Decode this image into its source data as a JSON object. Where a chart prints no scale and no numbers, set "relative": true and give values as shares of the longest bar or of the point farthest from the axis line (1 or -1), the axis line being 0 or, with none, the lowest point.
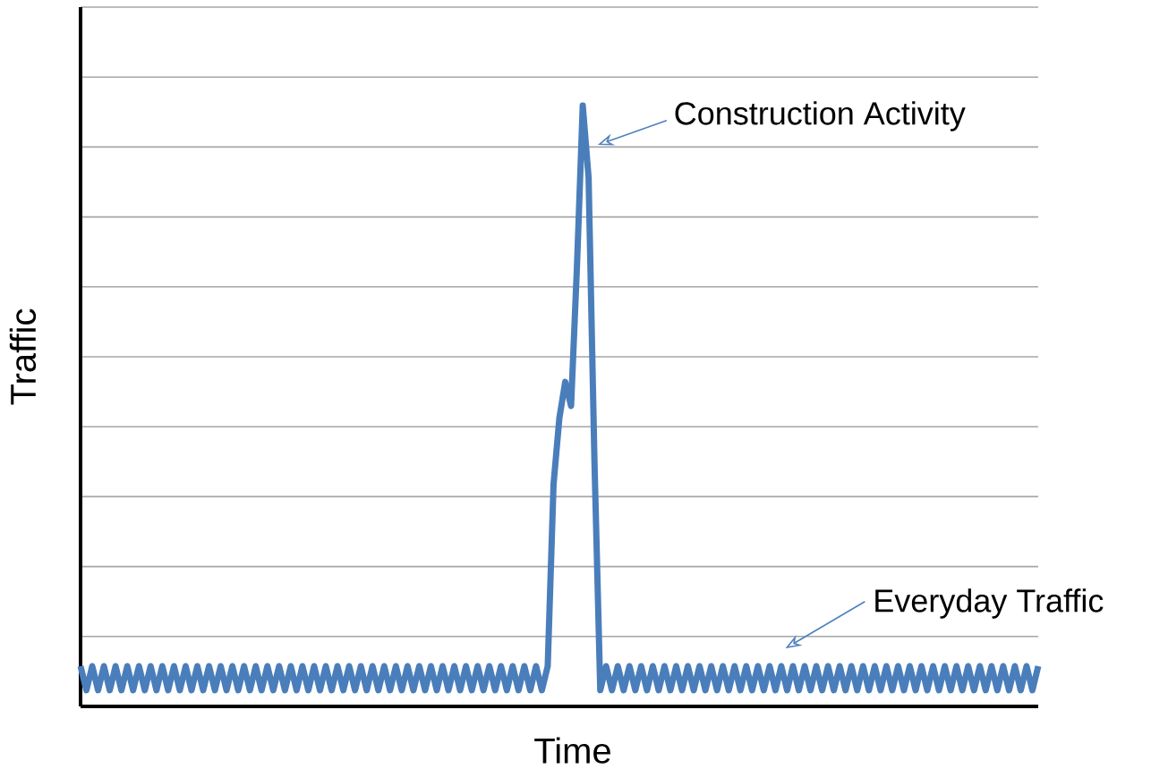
{
  "chart_data": {
    "type": "line",
    "relative": true,
    "xlabel": "Time",
    "ylabel": "Traffic",
    "annotations": [
      "Construction Activity",
      "Everyday Traffic"
    ],
    "categories": [
      null,
      null,
      null,
      null,
      null,
      null,
      null,
      null,
      null,
      null,
      null,
      null,
      null,
      null,
      null,
      null,
      null,
      null,
      null,
      null,
      null,
      null,
      null,
      null,
      null,
      null,
      null,
      null,
      null,
      null,
      null,
      null,
      null,
      null,
      null,
      null,
      null,
      null,
      null,
      null,
      null,
      null,
      null,
      null,
      null,
      null,
      null,
      null,
      null,
      null,
      null,
      null,
      null,
      null,
      null,
      null,
      null,
      null,
      null,
      null,
      null,
      null,
      null,
      null,
      null,
      null,
      null,
      null,
      null,
      null,
      null,
      null,
      null,
      null,
      null,
      null,
      null,
      null,
      null,
      null,
      null,
      null,
      null,
      null,
      null,
      null,
      null,
      null,
      null,
      null,
      null,
      null,
      null,
      null,
      null,
      null,
      null,
      null,
      null,
      null,
      null,
      null,
      null,
      null,
      null,
      null,
      null,
      null,
      null,
      null,
      null,
      null,
      null,
      null,
      null,
      null,
      null,
      null,
      null,
      null,
      null,
      null,
      null,
      null,
      null,
      null,
      null,
      null,
      null,
      null,
      null,
      null,
      null,
      null,
      null,
      null,
      null,
      null,
      null,
      null,
      null,
      null,
      null,
      null,
      null,
      null,
      null,
      null,
      null,
      null,
      null,
      null,
      null,
      null,
      null,
      null,
      null,
      null,
      null,
      null,
      null,
      null,
      null,
      null,
      null
    ],
    "values": [
      0.067,
      0.027,
      0.067,
      0.027,
      0.067,
      0.027,
      0.067,
      0.027,
      0.067,
      0.027,
      0.067,
      0.027,
      0.067,
      0.027,
      0.067,
      0.027,
      0.067,
      0.027,
      0.067,
      0.027,
      0.067,
      0.027,
      0.067,
      0.027,
      0.067,
      0.027,
      0.067,
      0.027,
      0.067,
      0.027,
      0.067,
      0.027,
      0.067,
      0.027,
      0.067,
      0.027,
      0.067,
      0.027,
      0.067,
      0.027,
      0.067,
      0.027,
      0.067,
      0.027,
      0.067,
      0.027,
      0.067,
      0.027,
      0.067,
      0.027,
      0.067,
      0.027,
      0.067,
      0.027,
      0.067,
      0.027,
      0.067,
      0.027,
      0.067,
      0.027,
      0.067,
      0.027,
      0.067,
      0.027,
      0.067,
      0.027,
      0.067,
      0.027,
      0.067,
      0.027,
      0.067,
      0.027,
      0.067,
      0.027,
      0.067,
      0.027,
      0.067,
      0.027,
      0.067,
      0.027,
      0.067,
      0.37,
      0.48,
      0.54,
      0.5,
      0.73,
      1,
      0.88,
      0.41,
      0.027,
      0.067,
      0.027,
      0.067,
      0.027,
      0.067,
      0.027,
      0.067,
      0.027,
      0.067,
      0.027,
      0.067,
      0.027,
      0.067,
      0.027,
      0.067,
      0.027,
      0.067,
      0.027,
      0.067,
      0.027,
      0.067,
      0.027,
      0.067,
      0.027,
      0.067,
      0.027,
      0.067,
      0.027,
      0.067,
      0.027,
      0.067,
      0.027,
      0.067,
      0.027,
      0.067,
      0.027,
      0.067,
      0.027,
      0.067,
      0.027,
      0.067,
      0.027,
      0.067,
      0.027,
      0.067,
      0.027,
      0.067,
      0.027,
      0.067,
      0.027,
      0.067,
      0.027,
      0.067,
      0.027,
      0.067,
      0.027,
      0.067,
      0.027,
      0.067,
      0.027,
      0.067,
      0.027,
      0.067,
      0.027,
      0.067,
      0.027,
      0.067,
      0.027,
      0.067,
      0.027,
      0.067,
      0.027,
      0.067,
      0.027,
      0.067
    ],
    "color": "#4a7ebb",
    "grid": "y",
    "marker": "none",
    "line_style": "solid"
  }
}
